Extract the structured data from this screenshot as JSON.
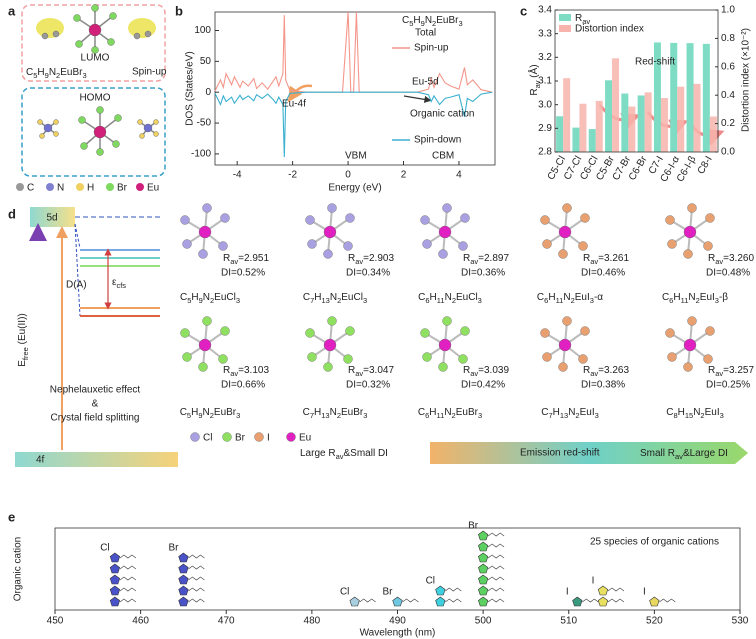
{
  "panel_a": {
    "label": "a",
    "lumo": "LUMO",
    "homo": "HOMO",
    "formula": "C5H9N2EuBr3",
    "spin": "Spin-up",
    "legend": [
      "C",
      "N",
      "H",
      "Br",
      "Eu"
    ]
  },
  "chart_data": [
    {
      "panel_label": "b",
      "type": "line",
      "title": "C5H9N2EuBr3",
      "legend_title": "Total",
      "x": [
        -4.8,
        -4.6,
        -4.5,
        -4.4,
        -4.2,
        -4.1,
        -3.9,
        -3.8,
        -3.6,
        -3.4,
        -3.3,
        -3.1,
        -2.9,
        -2.7,
        -2.6,
        -2.5,
        -2.35,
        -2.3,
        -2.25,
        -2.1,
        -1.5,
        -0.2,
        0,
        0.1,
        0.2,
        0.3,
        0.4,
        1,
        2.5,
        2.9,
        3.0,
        3.1,
        3.3,
        3.5,
        3.7,
        4.0,
        4.2,
        4.3,
        4.5,
        4.8,
        5.2
      ],
      "series": [
        {
          "name": "Spin-up",
          "color": "#f4968a",
          "values": [
            2,
            20,
            8,
            30,
            12,
            25,
            8,
            18,
            10,
            22,
            6,
            15,
            5,
            18,
            25,
            10,
            30,
            125,
            20,
            3,
            0,
            0,
            130,
            0,
            0,
            130,
            0,
            0,
            0,
            5,
            22,
            8,
            30,
            15,
            10,
            5,
            40,
            12,
            20,
            4,
            0
          ]
        },
        {
          "name": "Spin-down",
          "color": "#3ab0d0",
          "values": [
            -2,
            -20,
            -6,
            -15,
            -8,
            -18,
            -5,
            -12,
            -6,
            -14,
            -4,
            -10,
            -3,
            -12,
            -18,
            -8,
            -20,
            -105,
            -15,
            -2,
            0,
            0,
            0,
            0,
            0,
            0,
            0,
            0,
            0,
            -4,
            -15,
            -6,
            -20,
            -10,
            -8,
            -4,
            -40,
            -10,
            -15,
            -3,
            0
          ]
        }
      ],
      "xlim": [
        -4.8,
        5.3
      ],
      "xticks": [
        -4,
        -2,
        0,
        2,
        4
      ],
      "ylim": [
        -118,
        130
      ],
      "yticks": [
        -100,
        -50,
        0,
        50,
        100
      ],
      "xlabel": "Energy (eV)",
      "ylabel": "DOS (States/eV)",
      "annotations": [
        "Eu-5d",
        "Eu-4f",
        "Organic cation",
        "VBM",
        "CBM"
      ]
    },
    {
      "panel_label": "c",
      "type": "bar",
      "categories": [
        "C5-Cl",
        "C7-Cl",
        "C6-Cl",
        "C5-Br",
        "C7-Br",
        "C6-Br",
        "C7-I",
        "C6-I-α",
        "C6-I-β",
        "C8-I"
      ],
      "series": [
        {
          "name": "Rav",
          "color": "#7fdcc4",
          "values": [
            2.951,
            2.903,
            2.897,
            3.103,
            3.047,
            3.039,
            3.263,
            3.261,
            3.26,
            3.257
          ]
        },
        {
          "name": "Distortion index",
          "color": "#f7b4ac",
          "axis": "y2",
          "values": [
            0.52,
            0.34,
            0.36,
            0.66,
            0.32,
            0.42,
            0.38,
            0.46,
            0.48,
            0.25
          ]
        }
      ],
      "ylim": [
        2.8,
        3.4
      ],
      "yticks": [
        2.8,
        2.9,
        {
          "value": 3,
          "label": "3.0"
        },
        3.1,
        3.2,
        3.3,
        3.4
      ],
      "y2lim": [
        0,
        1
      ],
      "y2ticks": [
        {
          "value": 0,
          "label": "0.0"
        },
        0.2,
        0.4,
        0.6,
        0.8,
        {
          "value": 1,
          "label": "1.0"
        }
      ],
      "ylabel": "Rav (Å)",
      "y2label": "Distortion index (×10⁻²)",
      "annotation": "Red-shift"
    },
    {
      "panel_label": "e",
      "type": "scatter",
      "series": [
        {
          "name": "Cl",
          "color": "#4a52c8",
          "x": [
            457,
            457,
            457,
            457,
            457
          ]
        },
        {
          "name": "Br",
          "color": "#4a52c8",
          "x": [
            465,
            465,
            465,
            465,
            465
          ]
        },
        {
          "name": "Cl",
          "color": "#a8cfe0",
          "x": [
            485
          ]
        },
        {
          "name": "Br",
          "color": "#70c8e0",
          "x": [
            490
          ]
        },
        {
          "name": "Cl",
          "color": "#3fd0e0",
          "x": [
            495,
            495
          ]
        },
        {
          "name": "Br",
          "color": "#5cd060",
          "x": [
            500,
            500,
            500,
            500,
            500,
            500,
            500
          ]
        },
        {
          "name": "I",
          "color": "#3a9a80",
          "x": [
            511
          ]
        },
        {
          "name": "I",
          "color": "#e8e060",
          "x": [
            514,
            514
          ]
        },
        {
          "name": "I",
          "color": "#e8d860",
          "x": [
            520
          ]
        }
      ],
      "xlim": [
        450,
        530
      ],
      "xticks": [
        450,
        460,
        470,
        480,
        490,
        500,
        510,
        520,
        530
      ],
      "xlabel": "Wavelength (nm)",
      "ylabel": "Organic cation",
      "annotation": "25 species of organic cations"
    }
  ],
  "panel_d": {
    "label": "d",
    "levels": {
      "upper": "5d",
      "lower": "4f",
      "splitting": "D(A)",
      "cfs": "εcfs",
      "energy": "Efree (Eu(II))"
    },
    "effects": [
      "Nephelauxetic effect",
      "&",
      "Crystal field splitting"
    ],
    "structures": [
      {
        "formula": "C5H9N2EuCl3",
        "rav": "Rav=2.951",
        "di": "DI=0.52%"
      },
      {
        "formula": "C7H13N2EuCl3",
        "rav": "Rav=2.903",
        "di": "DI=0.34%"
      },
      {
        "formula": "C6H11N2EuCl3",
        "rav": "Rav=2.897",
        "di": "DI=0.36%"
      },
      {
        "formula": "C6H11N2EuI3-α",
        "rav": "Rav=3.261",
        "di": "DI=0.46%"
      },
      {
        "formula": "C6H11N2EuI3-β",
        "rav": "Rav=3.260",
        "di": "DI=0.48%"
      },
      {
        "formula": "C5H9N2EuBr3",
        "rav": "Rav=3.103",
        "di": "DI=0.66%"
      },
      {
        "formula": "C7H13N2EuBr3",
        "rav": "Rav=3.047",
        "di": "DI=0.32%"
      },
      {
        "formula": "C6H11N2EuBr3",
        "rav": "Rav=3.039",
        "di": "DI=0.42%"
      },
      {
        "formula": "C7H13N2EuI3",
        "rav": "Rav=3.263",
        "di": "DI=0.38%"
      },
      {
        "formula": "C8H15N2EuI3",
        "rav": "Rav=3.257",
        "di": "DI=0.25%"
      }
    ],
    "legend": [
      "Cl",
      "Br",
      "I",
      "Eu"
    ],
    "trend": {
      "left": "Large Rav&Small DI",
      "middle": "Emission red-shift",
      "right": "Small Rav&Large DI"
    }
  }
}
